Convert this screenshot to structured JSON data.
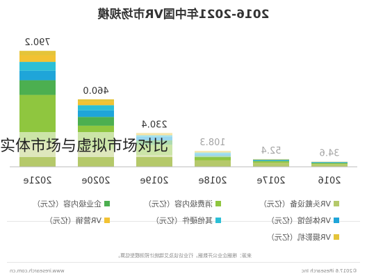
{
  "title": "2016-2021年中国VR市场规模",
  "overlay_caption": "实体市场与虚拟市场对比",
  "source_note": "来源：根据企业公开数据，行业访谈及艾瑞统计预测模型估算。",
  "footer": {
    "left": "©2017.6 iResearch Inc",
    "right": "www.iresearch.com.cn"
  },
  "colors": {
    "vr_headset": "#b5c96a",
    "vr_experience": "#1fa5d9",
    "vr_photo": "#e4c43a",
    "consumer_content": "#8fc63f",
    "other_hw": "#2bbfd6",
    "enterprise_content": "#4caf50",
    "marketing": "#f2c233"
  },
  "legend": [
    {
      "label": "VR头戴设备（亿元）",
      "color_key": "vr_headset"
    },
    {
      "label": "消费级内容（亿元）",
      "color_key": "consumer_content"
    },
    {
      "label": "企业级内容（亿元）",
      "color_key": "enterprise_content"
    },
    {
      "label": "VR体验馆（亿元）",
      "color_key": "vr_experience"
    },
    {
      "label": "其他硬件（亿元）",
      "color_key": "other_hw"
    },
    {
      "label": "VR营销（亿元）",
      "color_key": "marketing"
    },
    {
      "label": "VR摄影机（亿元）",
      "color_key": "vr_photo"
    }
  ],
  "chart_data": {
    "type": "bar",
    "stacked": true,
    "title": "2016-2021年中国VR市场规模",
    "categories": [
      "2016",
      "2017e",
      "2018e",
      "2019e",
      "2020e",
      "2021e"
    ],
    "totals": [
      34.6,
      52.4,
      108.3,
      230.4,
      460.0,
      790.2
    ],
    "total_labels": [
      "34.6",
      "52.4",
      "108.3",
      "230.4",
      "460.0",
      "790.2"
    ],
    "series": [
      {
        "name": "VR头戴设备（亿元）",
        "color_key": "vr_headset",
        "values": [
          18,
          28,
          45,
          80,
          120,
          170
        ]
      },
      {
        "name": "消费级内容（亿元）",
        "color_key": "consumer_content",
        "values": [
          6,
          9,
          20,
          70,
          160,
          320
        ]
      },
      {
        "name": "企业级内容（亿元）",
        "color_key": "enterprise_content",
        "values": [
          3,
          4,
          10,
          30,
          60,
          100
        ]
      },
      {
        "name": "VR体验馆（亿元）",
        "color_key": "vr_experience",
        "values": [
          3.6,
          5,
          12,
          25,
          45,
          65
        ]
      },
      {
        "name": "其他硬件（亿元）",
        "color_key": "other_hw",
        "values": [
          2,
          3,
          10,
          10,
          35,
          60
        ]
      },
      {
        "name": "VR营销（亿元）",
        "color_key": "marketing",
        "values": [
          1,
          1.4,
          6,
          8,
          25,
          45.2
        ]
      },
      {
        "name": "VR摄影机（亿元）",
        "color_key": "vr_photo",
        "values": [
          1,
          2,
          5.3,
          7.4,
          15,
          30
        ]
      }
    ],
    "ylim": [
      0,
      900
    ],
    "grid": false,
    "legend_position": "bottom"
  }
}
